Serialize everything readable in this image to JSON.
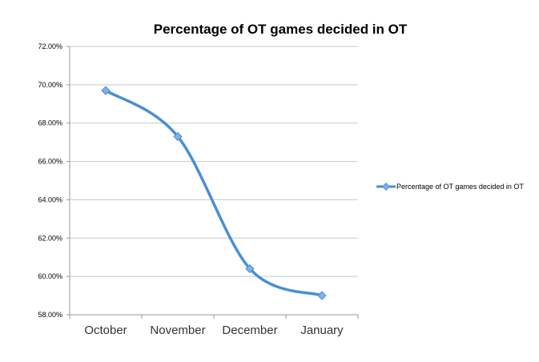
{
  "chart_data": {
    "type": "line",
    "title": "Percentage of OT games decided in OT",
    "xlabel": "",
    "ylabel": "",
    "categories": [
      "October",
      "November",
      "December",
      "January"
    ],
    "series": [
      {
        "name": "Percentage of OT games decided in OT",
        "values": [
          69.7,
          67.3,
          60.4,
          59.0
        ],
        "color": "#4A8FD2"
      }
    ],
    "ylim": [
      58.0,
      72.0
    ],
    "yticks": [
      "58.00%",
      "60.00%",
      "62.00%",
      "64.00%",
      "66.00%",
      "68.00%",
      "70.00%",
      "72.00%"
    ],
    "grid": true,
    "smooth": true,
    "marker": "diamond",
    "legend_position": "right"
  }
}
